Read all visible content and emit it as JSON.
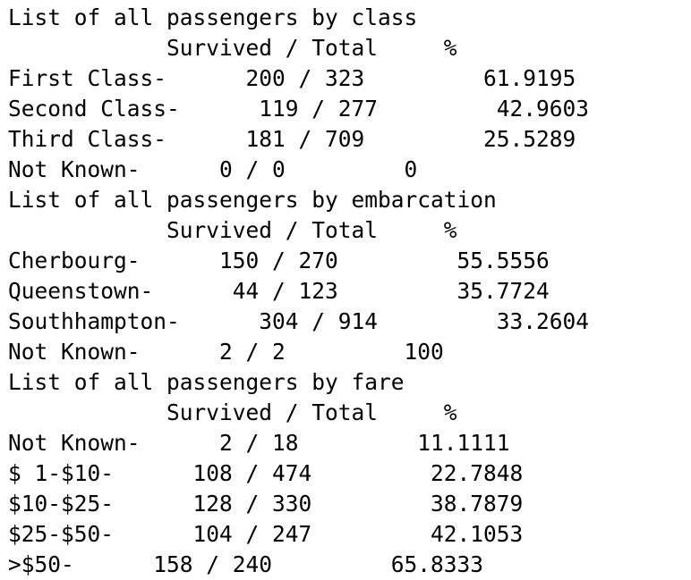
{
  "output": {
    "lines": [
      "List of all passengers by class",
      "            Survived / Total     %",
      "First Class-      200 / 323         61.9195",
      "Second Class-      119 / 277         42.9603",
      "Third Class-      181 / 709         25.5289",
      "Not Known-      0 / 0         0",
      "List of all passengers by embarcation",
      "            Survived / Total     %",
      "Cherbourg-      150 / 270         55.5556",
      "Queenstown-      44 / 123         35.7724",
      "Southhampton-      304 / 914         33.2604",
      "Not Known-      2 / 2         100",
      "List of all passengers by fare",
      "            Survived / Total     %",
      "Not Known-      2 / 18         11.1111",
      "$ 1-$10-      108 / 474         22.7848",
      "$10-$25-      128 / 330         38.7879",
      "$25-$50-      104 / 247         42.1053",
      ">$50-      158 / 240         65.8333"
    ]
  }
}
